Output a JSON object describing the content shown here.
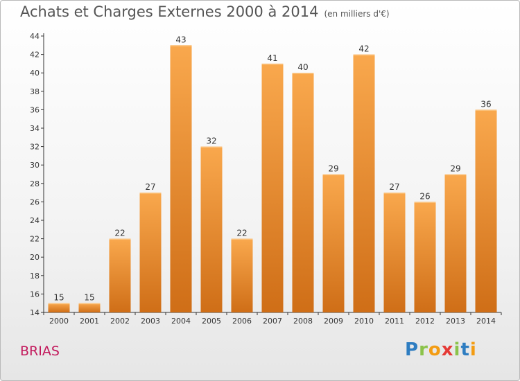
{
  "title": "Achats et Charges Externes 2000 à 2014",
  "unit_label": "(en milliers d'€)",
  "commune": "BRIAS",
  "logo": {
    "text": "Proxiti",
    "colors": [
      "#2e7dc1",
      "#8bc34a",
      "#f39c12",
      "#e53935",
      "#8bc34a",
      "#2e7dc1",
      "#f39c12"
    ]
  },
  "colors": {
    "bar_light": "#f7a44a",
    "bar_dark": "#cf6e17",
    "axis": "#333333",
    "grid": "#dddddd",
    "label": "#333333"
  },
  "chart_data": {
    "type": "bar",
    "categories": [
      "2000",
      "2001",
      "2002",
      "2003",
      "2004",
      "2005",
      "2006",
      "2007",
      "2008",
      "2009",
      "2010",
      "2011",
      "2012",
      "2013",
      "2014"
    ],
    "values": [
      15,
      15,
      22,
      27,
      43,
      32,
      22,
      41,
      40,
      29,
      42,
      27,
      26,
      29,
      36
    ],
    "title": "Achats et Charges Externes 2000 à 2014",
    "ylim": [
      14,
      44
    ],
    "yticks": [
      14,
      16,
      18,
      20,
      22,
      24,
      26,
      28,
      30,
      32,
      34,
      36,
      38,
      40,
      42,
      44
    ],
    "grid": false,
    "data_labels": true
  }
}
